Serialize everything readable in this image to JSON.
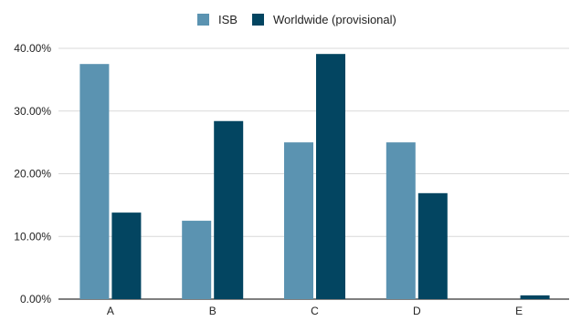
{
  "chart_data": {
    "type": "bar",
    "categories": [
      "A",
      "B",
      "C",
      "D",
      "E"
    ],
    "series": [
      {
        "name": "ISB",
        "values": [
          37.5,
          12.5,
          25.0,
          25.0,
          0.0
        ],
        "color": "#5b93b1"
      },
      {
        "name": "Worldwide (provisional)",
        "values": [
          13.8,
          28.4,
          39.1,
          16.9,
          0.6
        ],
        "color": "#034561"
      }
    ],
    "yticks": [
      "0.00%",
      "10.00%",
      "20.00%",
      "30.00%",
      "40.00%"
    ],
    "ylim": [
      0,
      40
    ],
    "title": "",
    "xlabel": "",
    "ylabel": "",
    "grid": true,
    "legend_position": "top-center"
  }
}
